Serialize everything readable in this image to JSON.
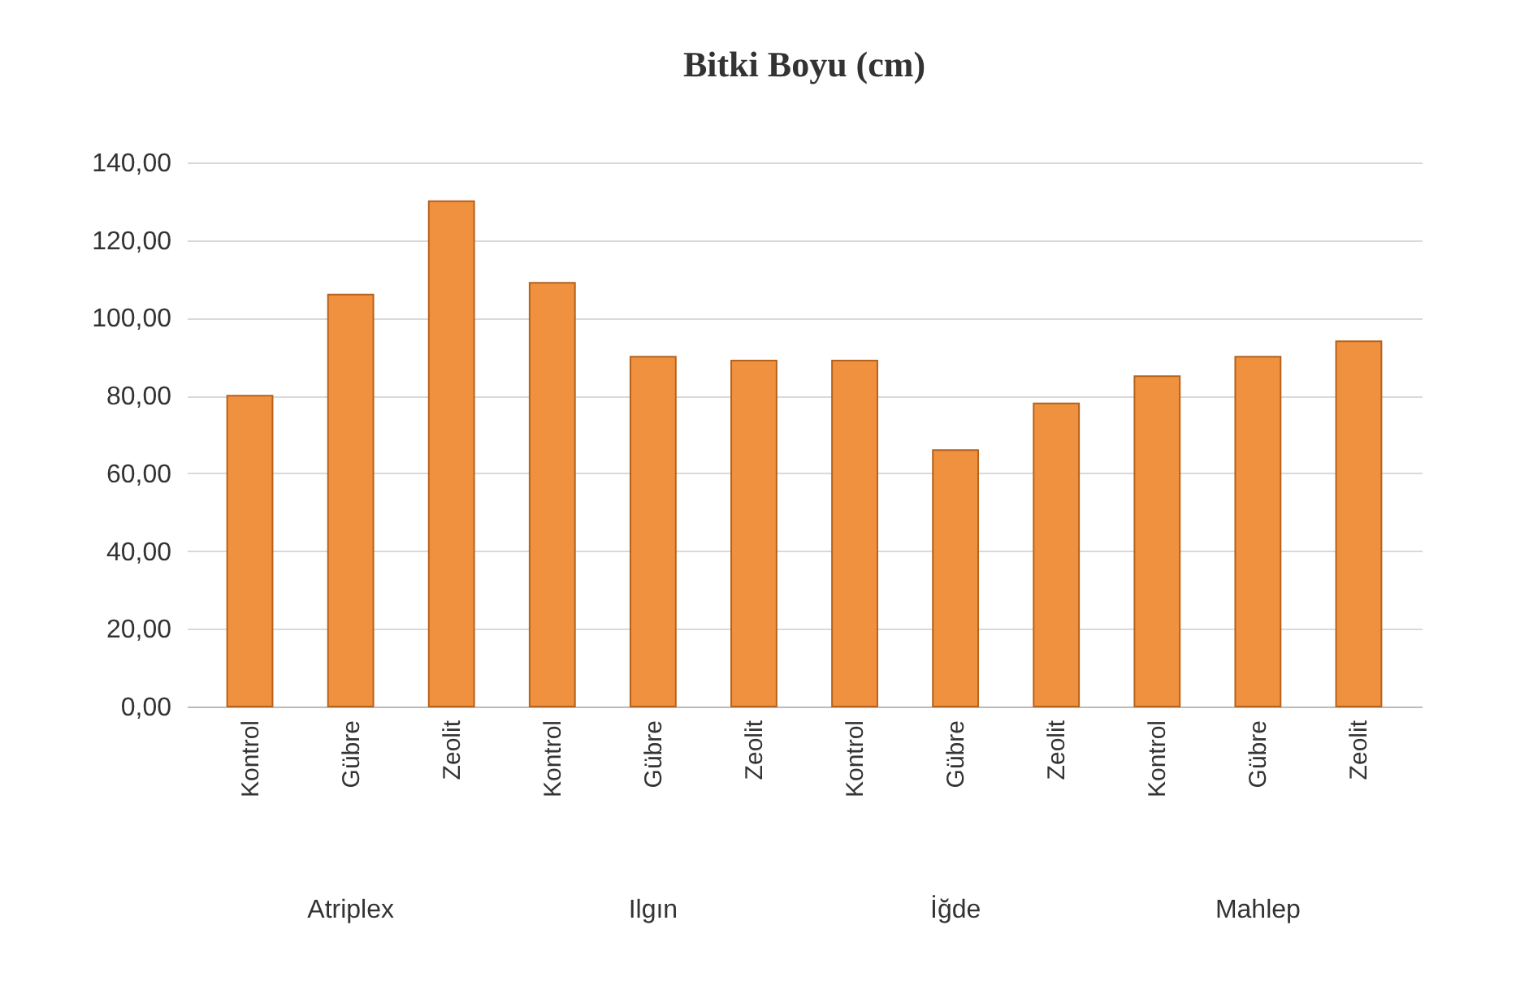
{
  "chart_data": {
    "type": "bar",
    "title": "Bitki Boyu (cm)",
    "categories": [
      "Kontrol",
      "Gübre",
      "Zeolit",
      "Kontrol",
      "Gübre",
      "Zeolit",
      "Kontrol",
      "Gübre",
      "Zeolit",
      "Kontrol",
      "Gübre",
      "Zeolit"
    ],
    "values": [
      80,
      106,
      130,
      109,
      90,
      89,
      89,
      66,
      78,
      85,
      90,
      94
    ],
    "color": "#f0913f",
    "ylim": [
      0,
      140
    ],
    "yticks": [
      {
        "value": 0,
        "label": "0,00"
      },
      {
        "value": 20,
        "label": "20,00"
      },
      {
        "value": 40,
        "label": "40,00"
      },
      {
        "value": 60,
        "label": "60,00"
      },
      {
        "value": 80,
        "label": "80,00"
      },
      {
        "value": 100,
        "label": "100,00"
      },
      {
        "value": 120,
        "label": "120,00"
      },
      {
        "value": 140,
        "label": "140,00"
      }
    ],
    "grid": "y",
    "annotations": [
      "Atriplex",
      "Ilgın",
      "İğde",
      "Mahlep"
    ]
  }
}
